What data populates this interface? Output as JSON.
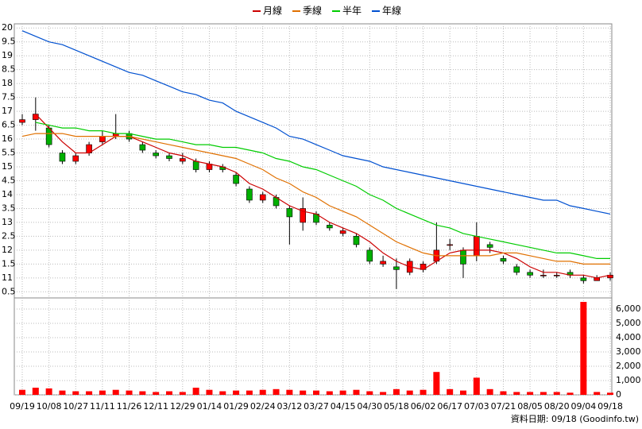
{
  "chart_data": [
    {
      "type": "candlestick",
      "legend": "top",
      "up_color": "#ff0000",
      "down_color": "#00b000",
      "categories": [
        "09/19",
        null,
        "10/08",
        null,
        "10/27",
        null,
        "11/11",
        null,
        "11/26",
        null,
        "12/11",
        null,
        "12/29",
        null,
        "01/14",
        null,
        "01/29",
        null,
        "02/24",
        null,
        "03/12",
        null,
        "03/27",
        null,
        "04/15",
        null,
        "04/30",
        null,
        "05/18",
        null,
        "06/02",
        null,
        "06/17",
        null,
        "07/03",
        null,
        "07/21",
        null,
        "08/05",
        null,
        "08/20",
        null,
        "09/04",
        null,
        "09/18"
      ],
      "open": [
        16.6,
        16.7,
        16.4,
        15.5,
        15.2,
        15.5,
        15.9,
        16.1,
        16.2,
        15.8,
        15.5,
        15.4,
        15.2,
        15.2,
        14.9,
        15.0,
        14.7,
        14.2,
        13.8,
        13.9,
        13.5,
        13.0,
        13.3,
        12.9,
        12.6,
        12.5,
        12.0,
        11.5,
        11.4,
        11.2,
        11.3,
        11.6,
        12.2,
        12.0,
        11.8,
        12.2,
        11.7,
        11.4,
        11.2,
        11.1,
        11.1,
        11.2,
        11.0,
        10.9,
        11.0
      ],
      "high": [
        16.9,
        17.5,
        16.5,
        15.6,
        15.5,
        15.9,
        16.3,
        16.9,
        16.3,
        15.9,
        15.6,
        15.5,
        15.5,
        15.3,
        15.2,
        15.1,
        14.8,
        14.3,
        14.1,
        14.0,
        13.6,
        13.9,
        13.4,
        13.0,
        12.8,
        12.6,
        12.1,
        11.8,
        11.7,
        11.7,
        11.6,
        13.0,
        12.4,
        12.1,
        13.0,
        12.3,
        11.8,
        11.5,
        11.3,
        11.3,
        11.2,
        11.3,
        11.1,
        11.1,
        11.2
      ],
      "low": [
        16.5,
        16.3,
        15.7,
        15.1,
        15.1,
        15.4,
        15.8,
        16.0,
        15.9,
        15.5,
        15.3,
        15.2,
        15.1,
        14.8,
        14.8,
        14.8,
        14.3,
        13.7,
        13.7,
        13.5,
        12.2,
        12.7,
        12.9,
        12.7,
        12.5,
        12.1,
        11.5,
        11.4,
        10.6,
        11.1,
        11.2,
        11.5,
        12.0,
        11.0,
        11.6,
        11.9,
        11.5,
        11.1,
        11.0,
        11.0,
        11.0,
        11.0,
        10.8,
        10.9,
        10.9
      ],
      "close": [
        16.7,
        16.9,
        15.8,
        15.2,
        15.4,
        15.8,
        16.1,
        16.2,
        16.0,
        15.6,
        15.4,
        15.3,
        15.3,
        14.9,
        15.1,
        14.9,
        14.4,
        13.8,
        14.0,
        13.6,
        13.2,
        13.5,
        13.0,
        12.8,
        12.7,
        12.2,
        11.6,
        11.6,
        11.3,
        11.6,
        11.5,
        12.0,
        12.2,
        11.5,
        12.5,
        12.1,
        11.6,
        11.2,
        11.1,
        11.1,
        11.1,
        11.1,
        10.9,
        11.0,
        11.1
      ],
      "series": [
        {
          "name": "月線",
          "color": "#cc0000",
          "values": [
            null,
            16.9,
            16.4,
            15.9,
            15.5,
            15.5,
            15.8,
            16.1,
            16.1,
            15.9,
            15.7,
            15.5,
            15.4,
            15.2,
            15.1,
            15.0,
            14.8,
            14.4,
            14.2,
            13.9,
            13.6,
            13.4,
            13.3,
            13.0,
            12.8,
            12.6,
            12.3,
            11.9,
            11.6,
            11.4,
            11.3,
            11.6,
            11.9,
            12.0,
            12.0,
            12.0,
            11.9,
            11.7,
            11.4,
            11.2,
            11.2,
            11.1,
            11.1,
            11.0,
            11.1
          ]
        },
        {
          "name": "季線",
          "color": "#e07000",
          "values": [
            16.1,
            16.2,
            16.2,
            16.2,
            16.1,
            16.1,
            16.1,
            16.1,
            16.1,
            16.0,
            15.9,
            15.8,
            15.7,
            15.6,
            15.5,
            15.4,
            15.3,
            15.1,
            14.9,
            14.6,
            14.4,
            14.1,
            13.9,
            13.6,
            13.4,
            13.2,
            12.9,
            12.6,
            12.3,
            12.1,
            11.9,
            11.8,
            11.8,
            11.8,
            11.8,
            11.8,
            11.9,
            11.9,
            11.8,
            11.7,
            11.6,
            11.6,
            11.5,
            11.5,
            11.5
          ]
        },
        {
          "name": "半年",
          "color": "#00cc00",
          "values": [
            null,
            16.6,
            16.5,
            16.4,
            16.4,
            16.3,
            16.3,
            16.2,
            16.2,
            16.1,
            16.0,
            16.0,
            15.9,
            15.8,
            15.8,
            15.7,
            15.7,
            15.6,
            15.5,
            15.3,
            15.2,
            15.0,
            14.9,
            14.7,
            14.5,
            14.3,
            14.0,
            13.8,
            13.5,
            13.3,
            13.1,
            12.9,
            12.8,
            12.6,
            12.5,
            12.4,
            12.3,
            12.2,
            12.1,
            12.0,
            11.9,
            11.9,
            11.8,
            11.7,
            11.7
          ]
        },
        {
          "name": "年線",
          "color": "#0050d0",
          "values": [
            19.9,
            19.7,
            19.5,
            19.4,
            19.2,
            19.0,
            18.8,
            18.6,
            18.4,
            18.3,
            18.1,
            17.9,
            17.7,
            17.6,
            17.4,
            17.3,
            17.0,
            16.8,
            16.6,
            16.4,
            16.1,
            16.0,
            15.8,
            15.6,
            15.4,
            15.3,
            15.2,
            15.0,
            14.9,
            14.8,
            14.7,
            14.6,
            14.5,
            14.4,
            14.3,
            14.2,
            14.1,
            14.0,
            13.9,
            13.8,
            13.8,
            13.6,
            13.5,
            13.4,
            13.3
          ]
        }
      ],
      "ylim": [
        10.28,
        20.15
      ],
      "yticks": [
        20,
        {
          "value": 19.5,
          "label": "9.5"
        },
        19,
        {
          "value": 18.5,
          "label": "8.5"
        },
        18,
        {
          "value": 17.5,
          "label": "7.5"
        },
        17,
        {
          "value": 16.5,
          "label": "6.5"
        },
        16,
        {
          "value": 15.5,
          "label": "5.5"
        },
        15,
        {
          "value": 14.5,
          "label": "4.5"
        },
        14,
        {
          "value": 13.5,
          "label": "3.5"
        },
        13,
        {
          "value": 12.5,
          "label": "2.5"
        },
        12,
        {
          "value": 11.5,
          "label": "1.5"
        },
        11,
        {
          "value": 10.5,
          "label": "0.5"
        }
      ],
      "grid": true
    },
    {
      "type": "bar",
      "color": "#ff0000",
      "values": [
        350,
        500,
        450,
        300,
        250,
        250,
        300,
        350,
        300,
        250,
        200,
        250,
        200,
        500,
        350,
        250,
        300,
        300,
        350,
        400,
        350,
        300,
        300,
        250,
        300,
        350,
        250,
        200,
        400,
        300,
        350,
        1600,
        400,
        300,
        1200,
        400,
        250,
        200,
        200,
        200,
        200,
        150,
        6500,
        200,
        150
      ],
      "ylim": [
        0,
        6780
      ],
      "yticks": [
        0,
        {
          "value": 1000,
          "label": "1,000"
        },
        {
          "value": 2000,
          "label": "2,000"
        },
        {
          "value": 3000,
          "label": "3,000"
        },
        {
          "value": 4000,
          "label": "4,000"
        },
        {
          "value": 5000,
          "label": "5,000"
        },
        {
          "value": 6000,
          "label": "6,000"
        }
      ],
      "grid": true
    }
  ],
  "footer": "資料日期: 09/18 (Goodinfo.tw)"
}
